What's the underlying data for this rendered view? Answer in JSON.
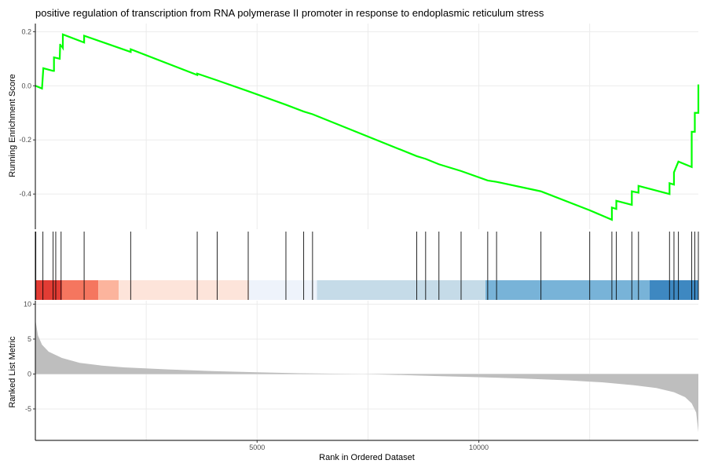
{
  "chart_data": {
    "type": "line",
    "title": "positive regulation of transcription from RNA polymerase II promoter in response to endoplasmic reticulum stress",
    "xlabel": "Rank in Ordered Dataset",
    "xlim": [
      0,
      14950
    ],
    "x_ticks": [
      5000,
      10000
    ],
    "x_tick_labels": [
      "5000",
      "10000"
    ],
    "grid": true,
    "panels": {
      "running_score": {
        "ylabel": "Running Enrichment Score",
        "ylim": [
          -0.53,
          0.23
        ],
        "y_ticks": [
          0.2,
          0.0,
          -0.2,
          -0.4
        ],
        "y_tick_labels": [
          "0.2",
          "0.0",
          "-0.2",
          "-0.4"
        ],
        "line_color": "#00ff00",
        "x": [
          0,
          150,
          180,
          400,
          420,
          420,
          550,
          560,
          560,
          600,
          620,
          620,
          1100,
          1100,
          2150,
          2150,
          3650,
          3650,
          4100,
          4100,
          4800,
          4800,
          5650,
          5650,
          6050,
          6050,
          6250,
          6250,
          8600,
          8600,
          8800,
          8800,
          9100,
          9100,
          9600,
          9600,
          10200,
          10200,
          10400,
          10400,
          11400,
          11400,
          12500,
          12500,
          13000,
          13000,
          13100,
          13100,
          13450,
          13450,
          13600,
          13600,
          14300,
          14300,
          14400,
          14400,
          14500,
          14500,
          14800,
          14800,
          14870,
          14870,
          14950,
          14950
        ],
        "y": [
          0.0,
          -0.01,
          0.065,
          0.055,
          0.055,
          0.105,
          0.1,
          0.155,
          0.15,
          0.145,
          0.14,
          0.19,
          0.16,
          0.185,
          0.125,
          0.135,
          0.04,
          0.045,
          0.02,
          0.02,
          -0.02,
          -0.02,
          -0.07,
          -0.07,
          -0.095,
          -0.095,
          -0.105,
          -0.105,
          -0.26,
          -0.26,
          -0.27,
          -0.27,
          -0.29,
          -0.29,
          -0.315,
          -0.315,
          -0.35,
          -0.35,
          -0.355,
          -0.355,
          -0.39,
          -0.39,
          -0.46,
          -0.46,
          -0.495,
          -0.45,
          -0.455,
          -0.425,
          -0.44,
          -0.39,
          -0.395,
          -0.37,
          -0.4,
          -0.36,
          -0.365,
          -0.32,
          -0.28,
          -0.28,
          -0.3,
          -0.17,
          -0.17,
          -0.1,
          -0.1,
          0.005
        ]
      },
      "hits": {
        "x": [
          10,
          170,
          400,
          460,
          580,
          1100,
          2150,
          3650,
          4100,
          4800,
          5650,
          6050,
          6250,
          8600,
          8800,
          9100,
          9600,
          10200,
          10400,
          11400,
          12500,
          13000,
          13100,
          13450,
          13600,
          14300,
          14400,
          14500,
          14800,
          14870,
          14950
        ]
      },
      "color_band": {
        "segments": [
          {
            "from": 0,
            "to": 600,
            "color": "#e23c34"
          },
          {
            "from": 600,
            "to": 1420,
            "color": "#f5765f"
          },
          {
            "from": 1420,
            "to": 1880,
            "color": "#fcb49d"
          },
          {
            "from": 1880,
            "to": 4820,
            "color": "#fde4da"
          },
          {
            "from": 4820,
            "to": 6350,
            "color": "#eef3fb"
          },
          {
            "from": 6350,
            "to": 10150,
            "color": "#c5dbe8"
          },
          {
            "from": 10150,
            "to": 13850,
            "color": "#78b3d8"
          },
          {
            "from": 13850,
            "to": 14950,
            "color": "#3e88c1"
          }
        ]
      },
      "ranked_metric": {
        "ylabel": "Ranked List Metric",
        "ylim": [
          -9.5,
          10.5
        ],
        "y_ticks": [
          10,
          5,
          0,
          -5
        ],
        "y_tick_labels": [
          "10",
          "5",
          "0",
          "-5"
        ],
        "fill_color": "#bebebe",
        "x": [
          0,
          20,
          60,
          150,
          300,
          600,
          1000,
          1500,
          2000,
          3000,
          4000,
          5000,
          6000,
          7000,
          7400,
          8000,
          9000,
          10000,
          11000,
          12000,
          12800,
          13500,
          14000,
          14400,
          14650,
          14800,
          14900,
          14950
        ],
        "y": [
          7.8,
          7.0,
          5.5,
          4.2,
          3.2,
          2.3,
          1.6,
          1.2,
          0.95,
          0.65,
          0.42,
          0.25,
          0.1,
          0.02,
          0.0,
          -0.1,
          -0.28,
          -0.45,
          -0.65,
          -0.9,
          -1.2,
          -1.6,
          -2.0,
          -2.6,
          -3.3,
          -4.2,
          -5.5,
          -8.3
        ]
      }
    }
  }
}
